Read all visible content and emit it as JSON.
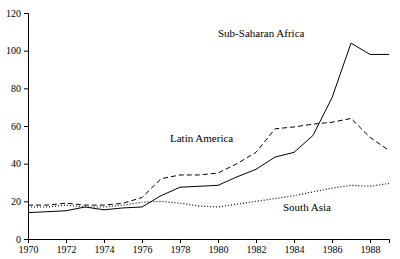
{
  "chart_data": {
    "type": "line",
    "x": [
      1970,
      1971,
      1972,
      1973,
      1974,
      1975,
      1976,
      1977,
      1978,
      1979,
      1980,
      1981,
      1982,
      1983,
      1984,
      1985,
      1986,
      1987,
      1988,
      1989
    ],
    "series": [
      {
        "name": "Sub-Saharan Africa",
        "color": "#000000",
        "line_style": "solid",
        "values": [
          14,
          14.5,
          15,
          17,
          15.5,
          16.5,
          17,
          23,
          27.5,
          28,
          28.5,
          33,
          37,
          43.5,
          46,
          55,
          75,
          104,
          98,
          98
        ]
      },
      {
        "name": "Latin America",
        "color": "#000000",
        "line_style": "dashed",
        "values": [
          18,
          18,
          19,
          18,
          18,
          19,
          22,
          32,
          34,
          34,
          35,
          40,
          46,
          58.5,
          59.5,
          61,
          62,
          64,
          54,
          47
        ]
      },
      {
        "name": "South Asia",
        "color": "#000000",
        "line_style": "dotted",
        "values": [
          17,
          17,
          18,
          17,
          17,
          18,
          19.5,
          20,
          19,
          17.5,
          17,
          18.5,
          20,
          21.5,
          23,
          25,
          27,
          28.5,
          28,
          29.5
        ]
      }
    ],
    "xlim": [
      1970,
      1989
    ],
    "xticks": [
      1970,
      1972,
      1974,
      1976,
      1978,
      1980,
      1982,
      1984,
      1986,
      1988
    ],
    "ylim": [
      0,
      120
    ],
    "yticks": [
      0,
      20,
      40,
      60,
      80,
      100,
      120
    ],
    "grid": false
  }
}
